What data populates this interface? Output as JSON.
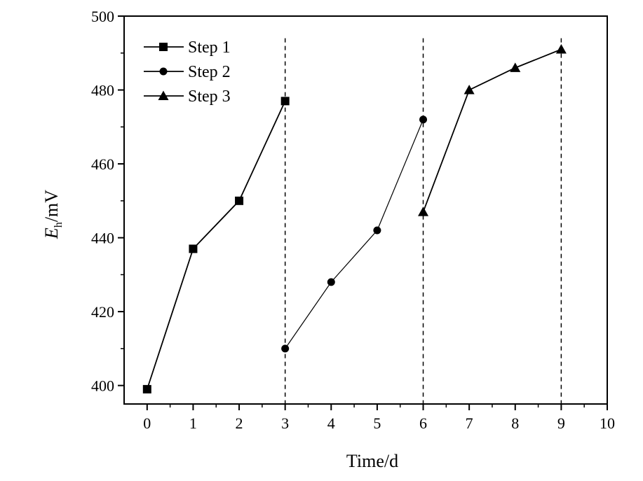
{
  "chart_data": {
    "type": "line",
    "title": "",
    "xlabel": "Time/d",
    "ylabel": {
      "main": "E",
      "sub": "h",
      "unit": "/mV"
    },
    "xlim": [
      -0.5,
      10
    ],
    "ylim": [
      395,
      500
    ],
    "xticks": [
      0,
      1,
      2,
      3,
      4,
      5,
      6,
      7,
      8,
      9,
      10
    ],
    "yticks": [
      400,
      420,
      440,
      460,
      480,
      500
    ],
    "grid": false,
    "legend_position": "top-left",
    "vlines": [
      3,
      6,
      9
    ],
    "series": [
      {
        "name": "Step 1",
        "marker": "square",
        "color": "#000000",
        "x": [
          0,
          1,
          2,
          3
        ],
        "y": [
          399,
          437,
          450,
          477
        ]
      },
      {
        "name": "Step 2",
        "marker": "circle",
        "color": "#000000",
        "x": [
          3,
          4,
          5,
          6
        ],
        "y": [
          410,
          428,
          442,
          472
        ]
      },
      {
        "name": "Step 3",
        "marker": "triangle",
        "color": "#000000",
        "x": [
          6,
          7,
          8,
          9
        ],
        "y": [
          447,
          480,
          486,
          491
        ]
      }
    ]
  }
}
